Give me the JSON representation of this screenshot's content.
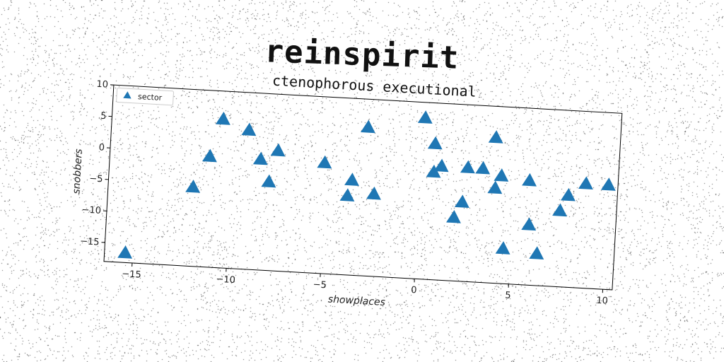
{
  "title": "reinspirit",
  "chart_data": {
    "type": "scatter",
    "subtitle": "ctenophorous executional",
    "xlabel": "showplaces",
    "ylabel": "snobbers",
    "xlim": [
      -16.5,
      10.5
    ],
    "ylim": [
      -18,
      10
    ],
    "xticks": [
      -15,
      -10,
      -5,
      0,
      5,
      10
    ],
    "yticks": [
      10,
      5,
      0,
      -5,
      -10,
      -15
    ],
    "legend_position": "top-left",
    "grid": false,
    "marker": "triangle",
    "color": "#1f77b4",
    "series": [
      {
        "name": "sector",
        "points": [
          [
            -15.4,
            -16.5
          ],
          [
            -12.0,
            -5.5
          ],
          [
            -11.2,
            -0.5
          ],
          [
            -10.6,
            5.5
          ],
          [
            -9.2,
            4.0
          ],
          [
            -8.5,
            -0.5
          ],
          [
            -8.0,
            -4.0
          ],
          [
            -7.6,
            1.0
          ],
          [
            -5.1,
            -0.5
          ],
          [
            -3.6,
            -3.0
          ],
          [
            -3.8,
            -5.5
          ],
          [
            -2.4,
            -5.0
          ],
          [
            -2.9,
            5.5
          ],
          [
            0.1,
            7.5
          ],
          [
            0.7,
            3.5
          ],
          [
            0.7,
            -1.0
          ],
          [
            1.1,
            0.0
          ],
          [
            1.9,
            -8.0
          ],
          [
            2.3,
            -5.5
          ],
          [
            2.5,
            0.0
          ],
          [
            3.3,
            0.0
          ],
          [
            3.9,
            5.0
          ],
          [
            4.3,
            -1.0
          ],
          [
            4.0,
            -3.0
          ],
          [
            4.6,
            -12.5
          ],
          [
            5.8,
            -1.5
          ],
          [
            5.9,
            -8.5
          ],
          [
            6.4,
            -13.0
          ],
          [
            7.5,
            -6.0
          ],
          [
            7.9,
            -3.5
          ],
          [
            8.8,
            -1.5
          ],
          [
            10.0,
            -1.5
          ]
        ]
      }
    ]
  }
}
